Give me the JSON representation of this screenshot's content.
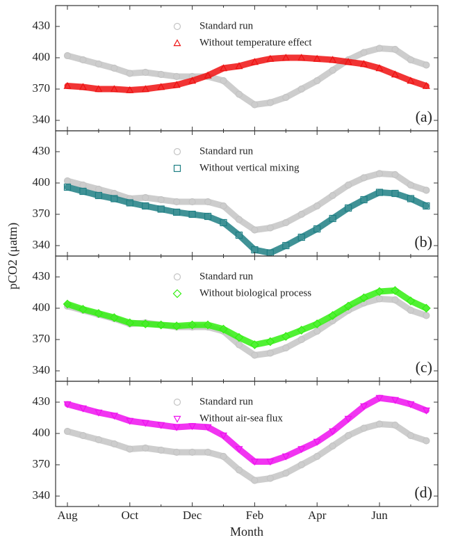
{
  "chart_data": [
    {
      "type": "line",
      "label": "(a)",
      "ylim": [
        330,
        450
      ],
      "yticks": [
        340,
        370,
        400,
        430
      ],
      "series": [
        {
          "name": "Standard run",
          "color": "#c4c4c4",
          "marker": "circle",
          "values": [
            402,
            398,
            394,
            390,
            385,
            386,
            384,
            382,
            382,
            382,
            378,
            365,
            355,
            357,
            362,
            370,
            378,
            388,
            398,
            405,
            409,
            408,
            398,
            393
          ]
        },
        {
          "name": "Without temperature effect",
          "color": "#ee1111",
          "marker": "triangle-up",
          "values": [
            373,
            372,
            370,
            370,
            369,
            370,
            372,
            374,
            378,
            383,
            390,
            392,
            396,
            399,
            400,
            400,
            399,
            398,
            396,
            394,
            390,
            384,
            378,
            373
          ]
        }
      ]
    },
    {
      "type": "line",
      "label": "(b)",
      "ylabel": "pCO2 (μatm)",
      "ylim": [
        330,
        450
      ],
      "yticks": [
        340,
        370,
        400,
        430
      ],
      "series": [
        {
          "name": "Standard run",
          "color": "#c4c4c4",
          "marker": "circle",
          "values": [
            402,
            398,
            394,
            390,
            385,
            386,
            384,
            382,
            382,
            382,
            378,
            365,
            355,
            357,
            362,
            370,
            378,
            388,
            398,
            405,
            409,
            408,
            398,
            393
          ]
        },
        {
          "name": "Without vertical mixing",
          "color": "#1e7f84",
          "marker": "square",
          "values": [
            396,
            392,
            388,
            385,
            381,
            378,
            375,
            372,
            370,
            368,
            362,
            350,
            336,
            333,
            340,
            348,
            356,
            366,
            376,
            384,
            391,
            390,
            385,
            378
          ]
        }
      ]
    },
    {
      "type": "line",
      "label": "(c)",
      "ylim": [
        330,
        450
      ],
      "yticks": [
        340,
        370,
        400,
        430
      ],
      "series": [
        {
          "name": "Standard run",
          "color": "#c4c4c4",
          "marker": "circle",
          "values": [
            402,
            398,
            394,
            390,
            385,
            386,
            384,
            382,
            382,
            382,
            378,
            365,
            355,
            357,
            362,
            370,
            378,
            388,
            398,
            405,
            409,
            408,
            398,
            393
          ]
        },
        {
          "name": "Without biological process",
          "color": "#33ee11",
          "marker": "diamond",
          "values": [
            404,
            399,
            395,
            391,
            386,
            385,
            384,
            383,
            384,
            384,
            380,
            372,
            365,
            368,
            373,
            379,
            385,
            393,
            402,
            410,
            416,
            417,
            407,
            400
          ]
        }
      ]
    },
    {
      "type": "line",
      "label": "(d)",
      "xlabel": "Month",
      "ylim": [
        330,
        450
      ],
      "yticks": [
        340,
        370,
        400,
        430
      ],
      "categories": [
        "Aug",
        null,
        null,
        null,
        "Oct",
        null,
        null,
        null,
        "Dec",
        null,
        null,
        null,
        "Feb",
        null,
        null,
        null,
        "Apr",
        null,
        null,
        null,
        "Jun",
        null,
        null,
        null
      ],
      "series": [
        {
          "name": "Standard run",
          "color": "#c4c4c4",
          "marker": "circle",
          "values": [
            402,
            398,
            394,
            390,
            385,
            386,
            384,
            382,
            382,
            382,
            378,
            365,
            355,
            357,
            362,
            370,
            378,
            388,
            398,
            405,
            409,
            408,
            398,
            393
          ]
        },
        {
          "name": "Without air-sea flux",
          "color": "#ee11ee",
          "marker": "triangle-down",
          "values": [
            428,
            424,
            420,
            417,
            412,
            410,
            408,
            406,
            407,
            406,
            398,
            385,
            373,
            373,
            378,
            385,
            392,
            402,
            414,
            426,
            434,
            432,
            428,
            422
          ]
        }
      ]
    }
  ]
}
